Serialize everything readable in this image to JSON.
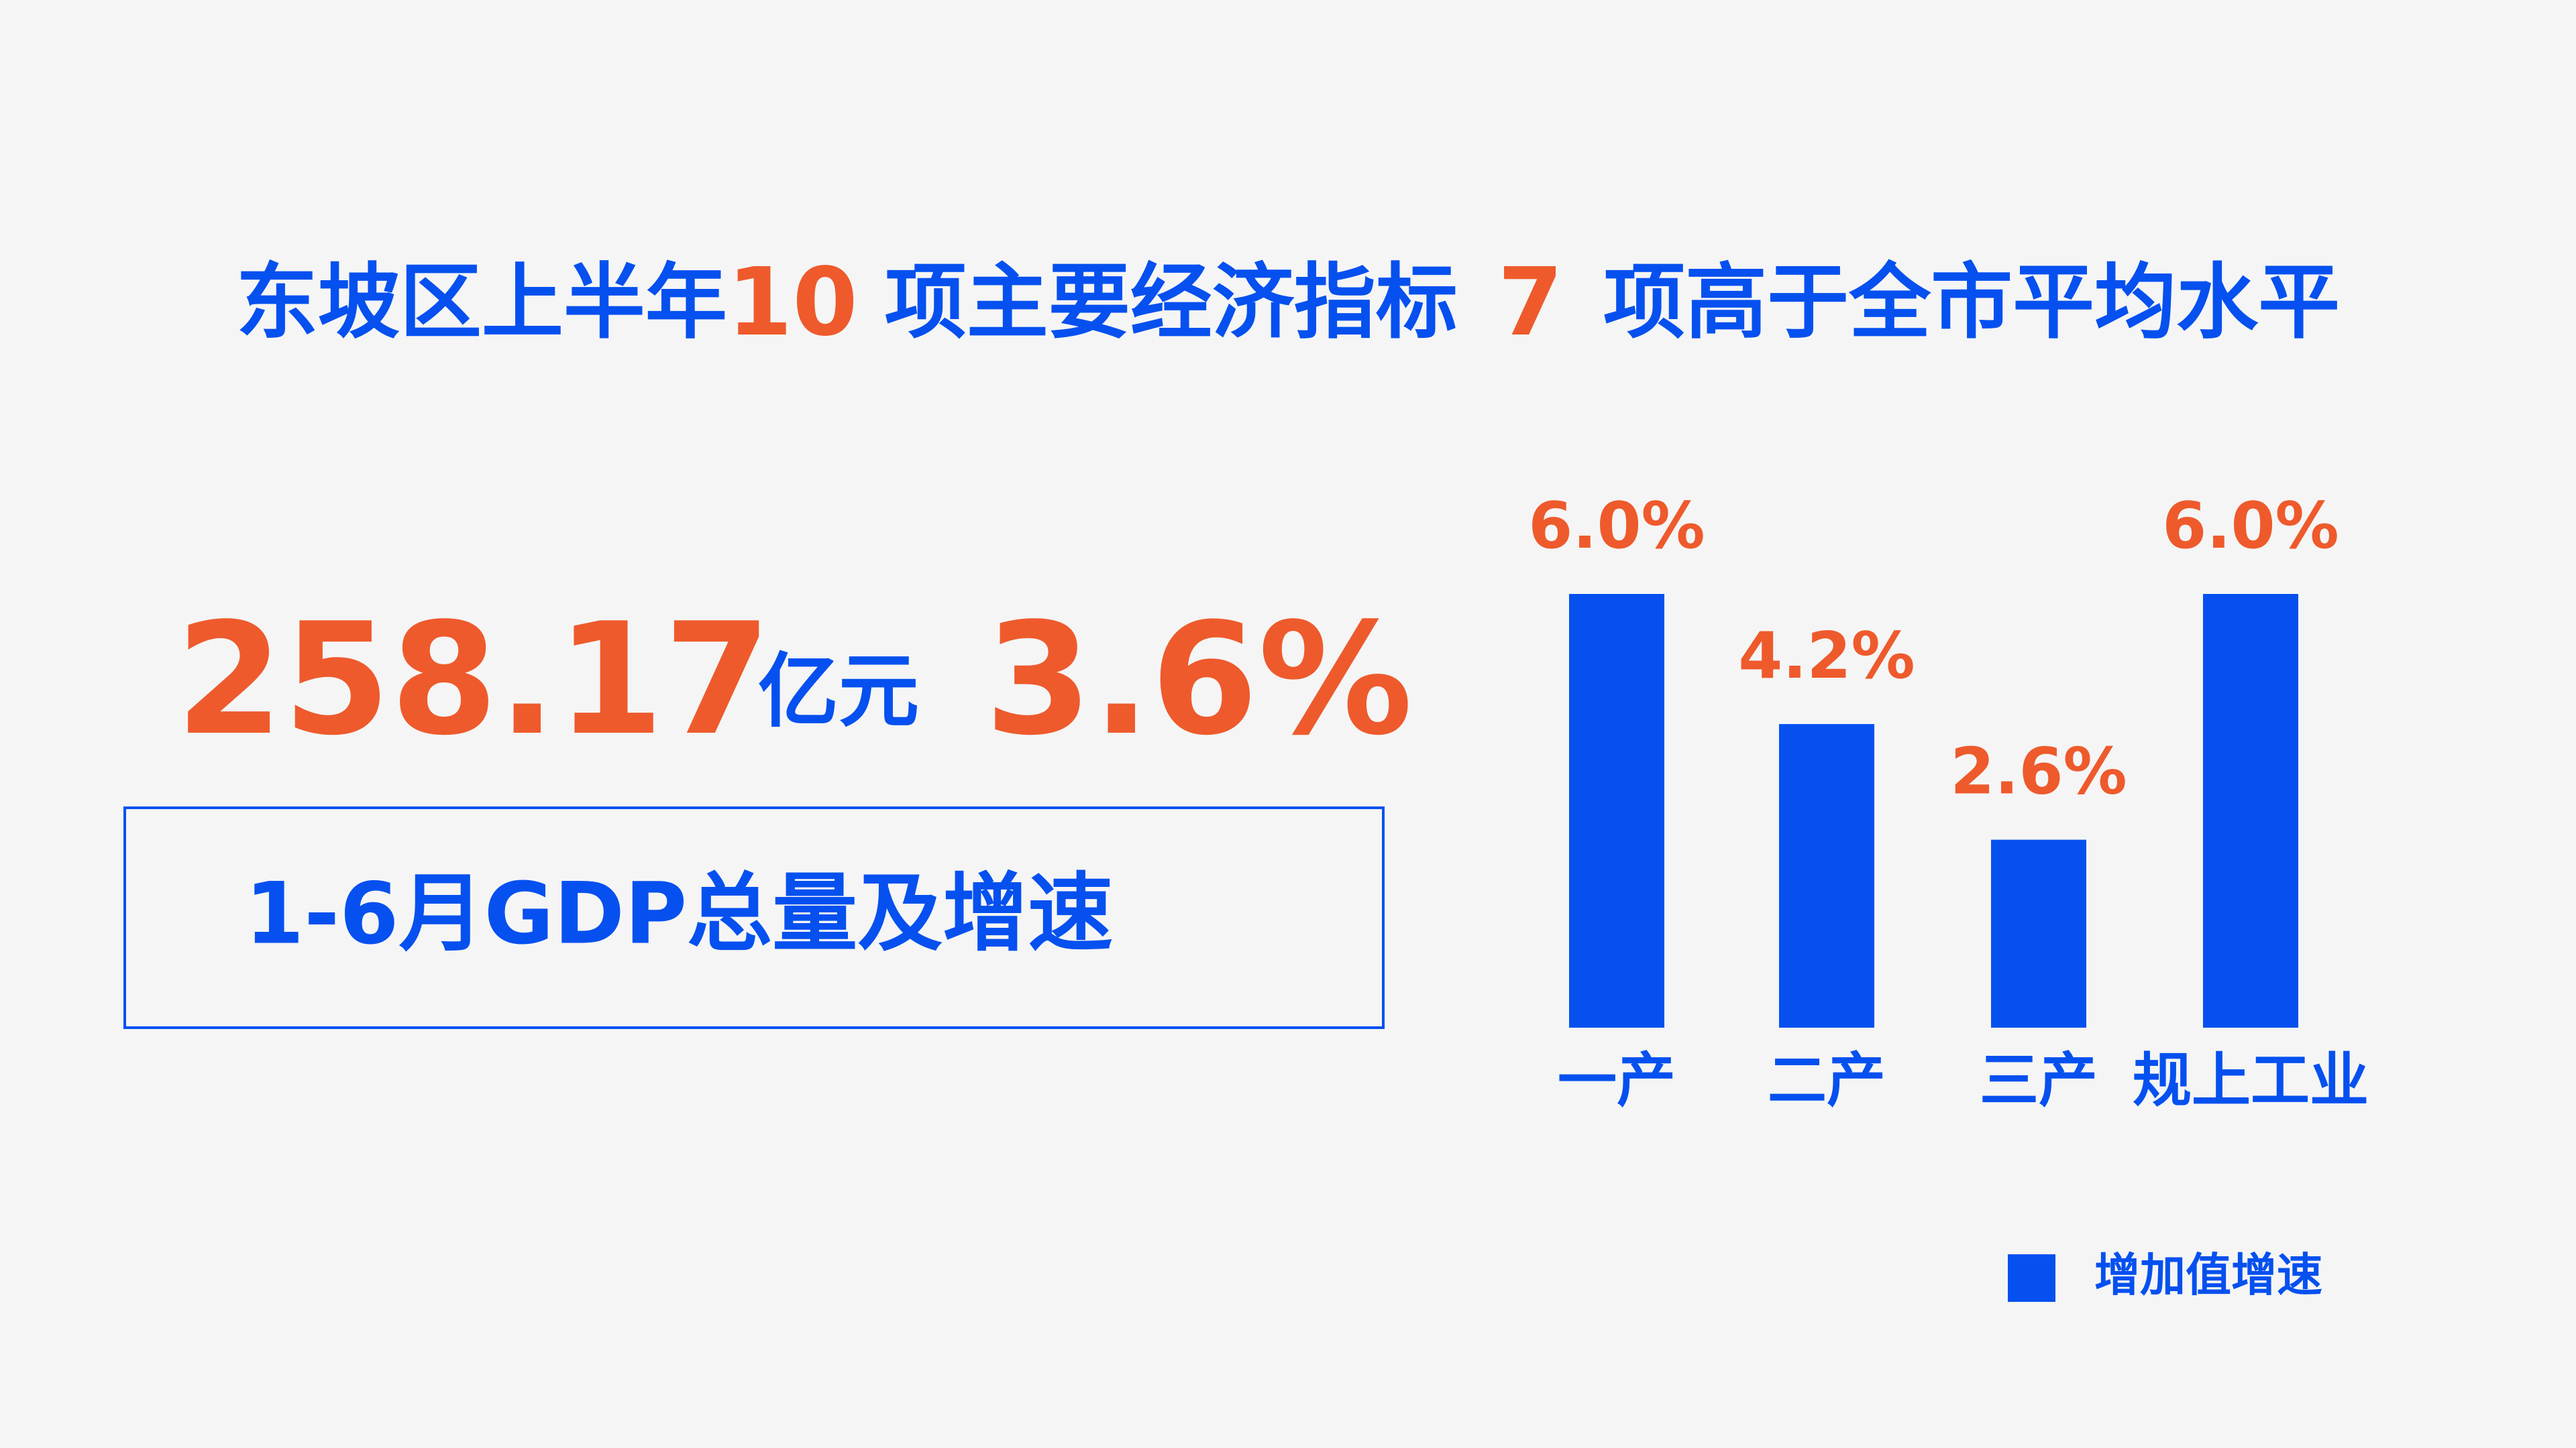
{
  "headline": {
    "parts": [
      "东坡区上半年",
      "10",
      "项主要经济指标",
      "7",
      "项高于全市平均水平"
    ]
  },
  "summary": {
    "total": "258.17",
    "unit": "亿元",
    "growth": "3.6%",
    "caption": "1-6月GDP总量及增速"
  },
  "chart_data": {
    "type": "bar",
    "categories": [
      "一产",
      "二产",
      "三产",
      "规上工业"
    ],
    "series": [
      {
        "name": "增加值增速",
        "color": "#0550ef",
        "values": [
          6.0,
          4.2,
          2.6,
          6.0
        ],
        "value_labels": [
          "6.0%",
          "4.2%",
          "2.6%",
          "6.0%"
        ],
        "label_color": "#ee5a2c"
      }
    ],
    "legend": "bottom-right"
  }
}
